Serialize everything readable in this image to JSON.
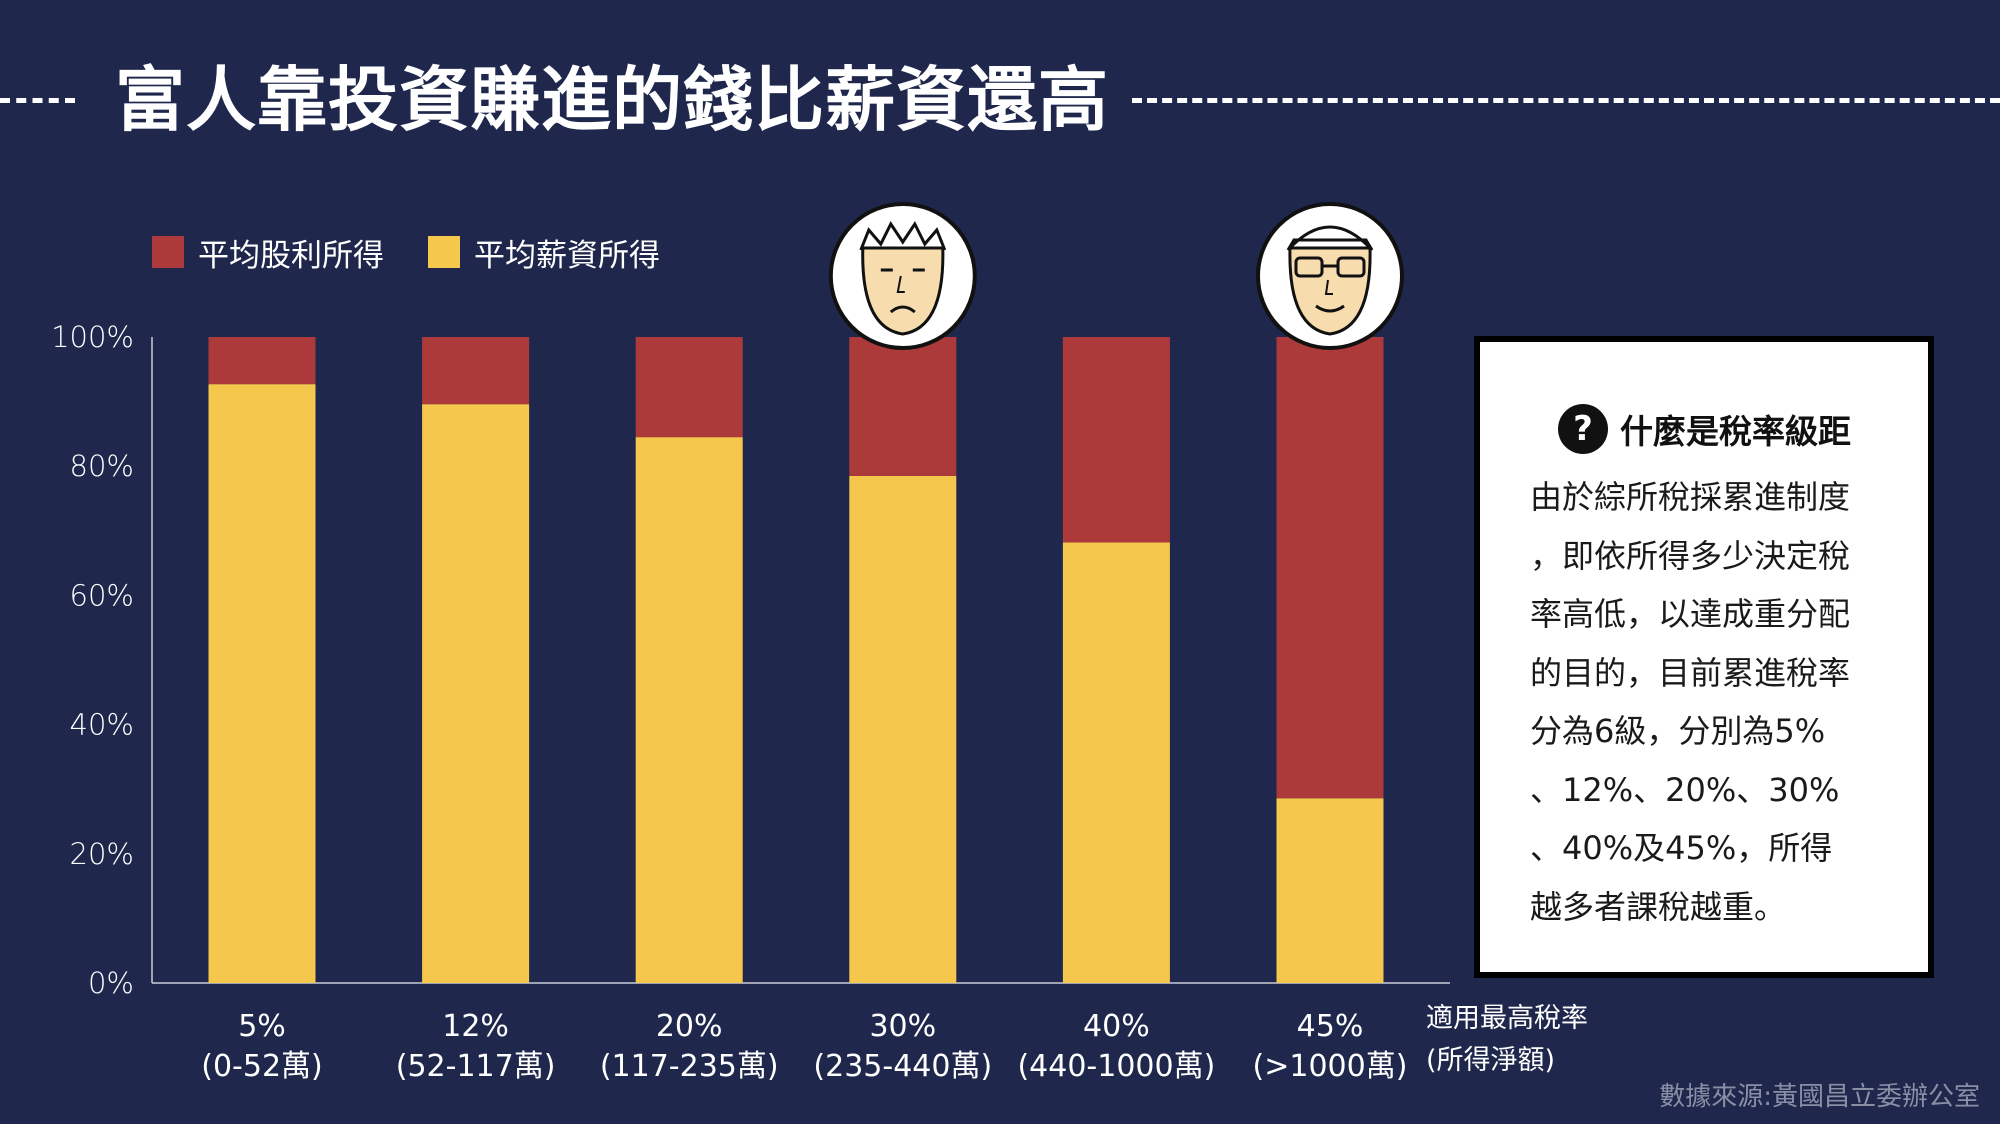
{
  "title": "富人靠投資賺進的錢比薪資還高",
  "legend": {
    "dividend": "平均股利所得",
    "salary": "平均薪資所得"
  },
  "colors": {
    "background": "#1f284c",
    "dividend": "#ad3a3a",
    "salary": "#f5c84d"
  },
  "axis_note": [
    "適用最高稅率",
    "(所得淨額)"
  ],
  "info_box": {
    "heading": "什麼是稅率級距",
    "lines": [
      "由於綜所稅採累進制度",
      "，即依所得多少決定稅",
      "率高低，以達成重分配",
      "的目的，目前累進稅率",
      "分為6級，分別為5%",
      "、12%、20%、30%",
      "、40%及45%，所得",
      "越多者課稅越重。"
    ]
  },
  "source": "數據來源:黃國昌立委辦公室",
  "chart_data": {
    "type": "bar",
    "stacked": true,
    "categories": [
      "5%",
      "12%",
      "20%",
      "30%",
      "40%",
      "45%"
    ],
    "category_ranges": [
      "(0-52萬)",
      "(52-117萬)",
      "(117-235萬)",
      "(235-440萬)",
      "(440-1000萬)",
      "(>1000萬)"
    ],
    "series": [
      {
        "name": "平均薪資所得",
        "color": "#f5c84d",
        "values": [
          92.7,
          89.6,
          84.5,
          78.5,
          68.2,
          28.6
        ]
      },
      {
        "name": "平均股利所得",
        "color": "#ad3a3a",
        "values": [
          7.3,
          10.4,
          15.5,
          21.5,
          31.8,
          71.4
        ]
      }
    ],
    "y_ticks": [
      "0%",
      "20%",
      "40%",
      "60%",
      "80%",
      "100%"
    ],
    "ylim": [
      0,
      100
    ],
    "legend_position": "top-left",
    "grid": false,
    "faces": [
      {
        "category": "30%",
        "icon": "sad-face-icon"
      },
      {
        "category": "45%",
        "icon": "smiling-glasses-face-icon"
      }
    ]
  }
}
